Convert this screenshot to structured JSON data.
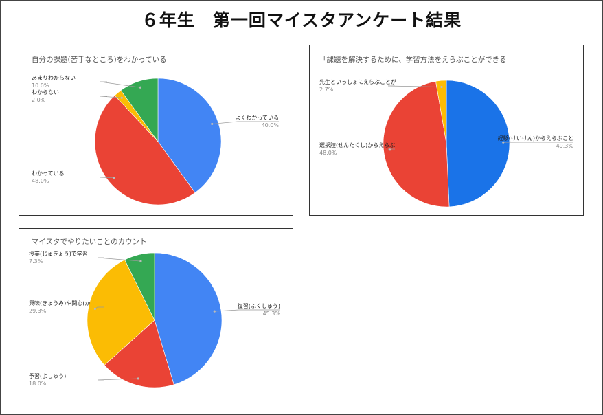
{
  "page": {
    "title": "６年生　第一回マイスタアンケート結果"
  },
  "colors": {
    "blue": "#4285F4",
    "red": "#EA4335",
    "yellow": "#FBBC04",
    "green": "#34A853",
    "page_blue": "#1a73e8"
  },
  "chart_data": [
    {
      "type": "pie",
      "title": "自分の課題(苦手なところ)をわかっている",
      "slices": [
        {
          "label": "よくわかっている",
          "value": 40.0,
          "pct_label": "40.0%",
          "color": "#4285F4"
        },
        {
          "label": "わかっている",
          "value": 48.0,
          "pct_label": "48.0%",
          "color": "#EA4335"
        },
        {
          "label": "わからない",
          "value": 2.0,
          "pct_label": "2.0%",
          "color": "#FBBC04"
        },
        {
          "label": "あまりわからない",
          "value": 10.0,
          "pct_label": "10.0%",
          "color": "#34A853"
        }
      ]
    },
    {
      "type": "pie",
      "title": "「課題を解決するために、学習方法をえらぶことができる",
      "slices": [
        {
          "label": "経験(けいけん)からえらぶこと",
          "value": 49.3,
          "pct_label": "49.3%",
          "color": "#1a73e8"
        },
        {
          "label": "選択肢(せんたくし)からえらぶ",
          "value": 48.0,
          "pct_label": "48.0%",
          "color": "#EA4335"
        },
        {
          "label": "先生といっしょにえらぶことが",
          "value": 2.7,
          "pct_label": "2.7%",
          "color": "#FBBC04"
        }
      ]
    },
    {
      "type": "pie",
      "title": "マイスタでやりたいことのカウント",
      "slices": [
        {
          "label": "復習(ふくしゅう)",
          "value": 45.3,
          "pct_label": "45.3%",
          "color": "#4285F4"
        },
        {
          "label": "予習(よしゅう)",
          "value": 18.0,
          "pct_label": "18.0%",
          "color": "#EA4335"
        },
        {
          "label": "興味(きょうみ)や関心(か",
          "value": 29.3,
          "pct_label": "29.3%",
          "color": "#FBBC04"
        },
        {
          "label": "授業(じゅぎょう)で学習",
          "value": 7.3,
          "pct_label": "7.3%",
          "color": "#34A853"
        }
      ]
    }
  ]
}
